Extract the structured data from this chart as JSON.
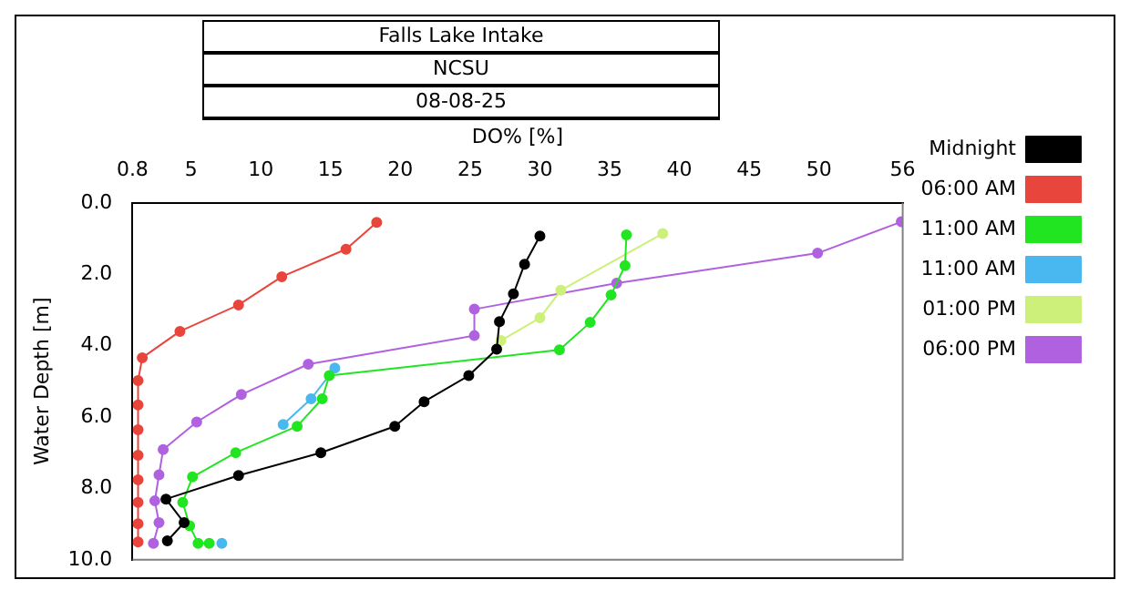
{
  "chart_data": {
    "type": "line",
    "title": "Falls Lake Intake",
    "subtitle": "NCSU",
    "annotations": [
      "08-08-25"
    ],
    "xlabel": "DO% [%]",
    "ylabel": "Water Depth [m]",
    "xlim": [
      0.8,
      56
    ],
    "xticks": [
      0.8,
      5,
      10,
      15,
      20,
      25,
      30,
      35,
      40,
      45,
      50,
      56
    ],
    "ylim": [
      10,
      0
    ],
    "yticks": [
      {
        "value": 0,
        "label": "0.0"
      },
      {
        "value": 2,
        "label": "2.0"
      },
      {
        "value": 4,
        "label": "4.0"
      },
      {
        "value": 6,
        "label": "6.0"
      },
      {
        "value": 8,
        "label": "8.0"
      },
      {
        "value": 10,
        "label": "10.0"
      }
    ],
    "grid": false,
    "legend": "right",
    "marker": "circle",
    "line_style": "solid",
    "series": [
      {
        "name": "Midnight",
        "color": "#000000",
        "x": [
          30,
          28.9,
          28.1,
          27.1,
          26.9,
          24.9,
          21.7,
          19.6,
          14.3,
          8.4,
          3.2,
          4.5,
          3.3
        ],
        "values": [
          0.93,
          1.72,
          2.55,
          3.33,
          4.1,
          4.84,
          5.57,
          6.26,
          7.0,
          7.64,
          8.3,
          8.96,
          9.47
        ]
      },
      {
        "name": "06:00 AM",
        "color": "#e8453c",
        "x": [
          18.3,
          16.1,
          11.5,
          8.4,
          4.2,
          1.5,
          1.2,
          1.2,
          1.2,
          1.2,
          1.2,
          1.2,
          1.2,
          1.2
        ],
        "values": [
          0.55,
          1.3,
          2.07,
          2.86,
          3.6,
          4.34,
          4.98,
          5.66,
          6.36,
          7.07,
          7.76,
          8.39,
          8.99,
          9.5
        ]
      },
      {
        "name": "11:00 AM",
        "color": "#22e522",
        "x": [
          36.2,
          36.1,
          35.1,
          33.6,
          31.4,
          14.9,
          14.4,
          12.6,
          8.2,
          5.1,
          4.4,
          4.9,
          5.5,
          6.3
        ],
        "values": [
          0.9,
          1.76,
          2.58,
          3.35,
          4.12,
          4.84,
          5.49,
          6.26,
          7.0,
          7.68,
          8.39,
          9.05,
          9.54,
          9.54
        ]
      },
      {
        "name": "11:00 AM",
        "color": "#4ab8f0",
        "x": [
          15.3,
          13.6,
          11.6,
          null,
          null,
          null,
          null,
          7.2
        ],
        "values": [
          4.63,
          5.49,
          6.21,
          null,
          null,
          null,
          null,
          9.54
        ]
      },
      {
        "name": "01:00 PM",
        "color": "#ccf07a",
        "x": [
          38.8,
          31.5,
          30.0,
          27.2
        ],
        "values": [
          0.86,
          2.45,
          3.22,
          3.86
        ]
      },
      {
        "name": "06:00 PM",
        "color": "#b061e0",
        "x": [
          55.9,
          49.9,
          35.5,
          25.3,
          25.3,
          13.4,
          8.6,
          5.4,
          3.0,
          2.7,
          2.4,
          2.7,
          2.3
        ],
        "values": [
          0.53,
          1.41,
          2.25,
          2.98,
          3.72,
          4.52,
          5.37,
          6.14,
          6.91,
          7.62,
          8.35,
          8.96,
          9.54
        ]
      }
    ]
  }
}
